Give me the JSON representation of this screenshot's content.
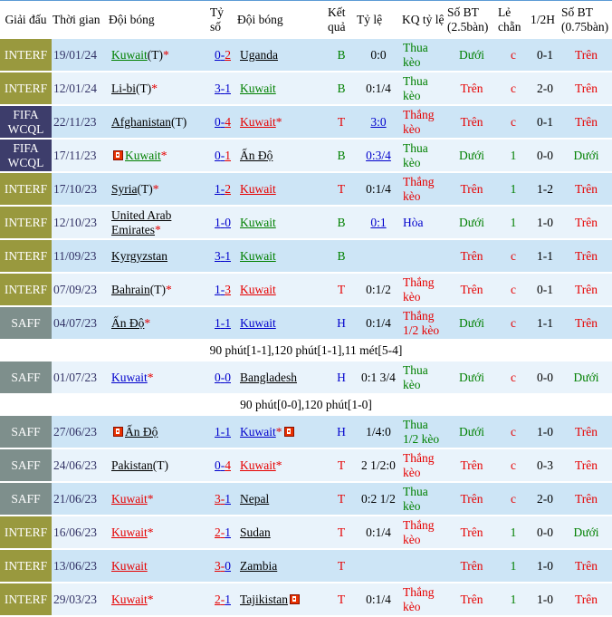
{
  "palette": {
    "green": "#008000",
    "red": "#e60000",
    "blue": "#0000cc",
    "black": "#000000",
    "date": "#333366",
    "badge_interf": "#99993e",
    "badge_fifawcql": "#3d3d6b",
    "badge_saff": "#7e8f8c",
    "row_dark": "#cde5f6",
    "row_light": "#e9f3fb"
  },
  "header": {
    "columns": [
      "Giải đấu",
      "Thời gian",
      "Đội bóng",
      "Tỷ số",
      "Đội bóng",
      "Kết quả",
      "Tỷ lệ",
      "KQ tỷ lệ",
      "Số BT (2.5bàn)",
      "Lẻ chẵn",
      "1/2H",
      "Số BT (0.75bàn)"
    ]
  },
  "rows": [
    {
      "type": "match",
      "tournament": "INTERF",
      "badge": "badge_interf",
      "date": "19/01/24",
      "home": {
        "name": "Kuwait",
        "suffix": "(T)",
        "star": true,
        "rc_before": false,
        "rc_after": false,
        "color": "green"
      },
      "score": {
        "left": "0",
        "right": "2",
        "left_color": "blue",
        "right_color": "red"
      },
      "away": {
        "name": "Uganda",
        "suffix": "",
        "star": false,
        "rc_before": false,
        "rc_after": false,
        "color": "black"
      },
      "result": {
        "text": "B",
        "color": "green"
      },
      "ratio": {
        "text": "0:0",
        "link": false
      },
      "kq": {
        "text": "Thua kèo",
        "color": "green"
      },
      "bt25": {
        "text": "Dưới",
        "color": "green"
      },
      "oddeven": {
        "text": "c",
        "color": "red"
      },
      "h12": "0-1",
      "bt075": {
        "text": "Trên",
        "color": "red"
      }
    },
    {
      "type": "match",
      "tournament": "INTERF",
      "badge": "badge_interf",
      "date": "12/01/24",
      "home": {
        "name": "Li-bi",
        "suffix": "(T)",
        "star": true,
        "rc_before": false,
        "rc_after": false,
        "color": "black"
      },
      "score": {
        "left": "3",
        "right": "1",
        "left_color": "blue",
        "right_color": "blue"
      },
      "away": {
        "name": "Kuwait",
        "suffix": "",
        "star": false,
        "rc_before": false,
        "rc_after": false,
        "color": "green"
      },
      "result": {
        "text": "B",
        "color": "green"
      },
      "ratio": {
        "text": "0:1/4",
        "link": false
      },
      "kq": {
        "text": "Thua kèo",
        "color": "green"
      },
      "bt25": {
        "text": "Trên",
        "color": "red"
      },
      "oddeven": {
        "text": "c",
        "color": "red"
      },
      "h12": "2-0",
      "bt075": {
        "text": "Trên",
        "color": "red"
      }
    },
    {
      "type": "match",
      "tournament": "FIFA WCQL",
      "badge": "badge_fifawcql",
      "date": "22/11/23",
      "home": {
        "name": "Afghanistan",
        "suffix": "(T)",
        "star": false,
        "rc_before": false,
        "rc_after": false,
        "color": "black"
      },
      "score": {
        "left": "0",
        "right": "4",
        "left_color": "blue",
        "right_color": "red"
      },
      "away": {
        "name": "Kuwait",
        "suffix": "",
        "star": true,
        "rc_before": false,
        "rc_after": false,
        "color": "red"
      },
      "result": {
        "text": "T",
        "color": "red"
      },
      "ratio": {
        "text": "3:0",
        "link": true
      },
      "kq": {
        "text": "Thắng kèo",
        "color": "red"
      },
      "bt25": {
        "text": "Trên",
        "color": "red"
      },
      "oddeven": {
        "text": "c",
        "color": "red"
      },
      "h12": "0-1",
      "bt075": {
        "text": "Trên",
        "color": "red"
      }
    },
    {
      "type": "match",
      "tournament": "FIFA WCQL",
      "badge": "badge_fifawcql",
      "date": "17/11/23",
      "home": {
        "name": "Kuwait",
        "suffix": "",
        "star": true,
        "rc_before": true,
        "rc_after": false,
        "color": "green"
      },
      "score": {
        "left": "0",
        "right": "1",
        "left_color": "blue",
        "right_color": "red"
      },
      "away": {
        "name": "Ấn Độ",
        "suffix": "",
        "star": false,
        "rc_before": false,
        "rc_after": false,
        "color": "black"
      },
      "result": {
        "text": "B",
        "color": "green"
      },
      "ratio": {
        "text": "0:3/4",
        "link": true
      },
      "kq": {
        "text": "Thua kèo",
        "color": "green"
      },
      "bt25": {
        "text": "Dưới",
        "color": "green"
      },
      "oddeven": {
        "text": "1",
        "color": "green"
      },
      "h12": "0-0",
      "bt075": {
        "text": "Dưới",
        "color": "green"
      }
    },
    {
      "type": "match",
      "tournament": "INTERF",
      "badge": "badge_interf",
      "date": "17/10/23",
      "home": {
        "name": "Syria",
        "suffix": "(T)",
        "star": true,
        "rc_before": false,
        "rc_after": false,
        "color": "black"
      },
      "score": {
        "left": "1",
        "right": "2",
        "left_color": "blue",
        "right_color": "red"
      },
      "away": {
        "name": "Kuwait",
        "suffix": "",
        "star": false,
        "rc_before": false,
        "rc_after": false,
        "color": "red"
      },
      "result": {
        "text": "T",
        "color": "red"
      },
      "ratio": {
        "text": "0:1/4",
        "link": false
      },
      "kq": {
        "text": "Thắng kèo",
        "color": "red"
      },
      "bt25": {
        "text": "Trên",
        "color": "red"
      },
      "oddeven": {
        "text": "1",
        "color": "green"
      },
      "h12": "1-2",
      "bt075": {
        "text": "Trên",
        "color": "red"
      }
    },
    {
      "type": "match",
      "tournament": "INTERF",
      "badge": "badge_interf",
      "date": "12/10/23",
      "home": {
        "name": "United Arab Emirates",
        "suffix": "",
        "star": true,
        "rc_before": false,
        "rc_after": false,
        "color": "black"
      },
      "score": {
        "left": "1",
        "right": "0",
        "left_color": "blue",
        "right_color": "blue"
      },
      "away": {
        "name": "Kuwait",
        "suffix": "",
        "star": false,
        "rc_before": false,
        "rc_after": false,
        "color": "green"
      },
      "result": {
        "text": "B",
        "color": "green"
      },
      "ratio": {
        "text": "0:1",
        "link": true
      },
      "kq": {
        "text": "Hòa",
        "color": "blue"
      },
      "bt25": {
        "text": "Dưới",
        "color": "green"
      },
      "oddeven": {
        "text": "1",
        "color": "green"
      },
      "h12": "1-0",
      "bt075": {
        "text": "Trên",
        "color": "red"
      }
    },
    {
      "type": "match",
      "tournament": "INTERF",
      "badge": "badge_interf",
      "date": "11/09/23",
      "home": {
        "name": "Kyrgyzstan",
        "suffix": "",
        "star": false,
        "rc_before": false,
        "rc_after": false,
        "color": "black"
      },
      "score": {
        "left": "3",
        "right": "1",
        "left_color": "blue",
        "right_color": "blue"
      },
      "away": {
        "name": "Kuwait",
        "suffix": "",
        "star": false,
        "rc_before": false,
        "rc_after": false,
        "color": "green"
      },
      "result": {
        "text": "B",
        "color": "green"
      },
      "ratio": {
        "text": "",
        "link": false
      },
      "kq": {
        "text": "",
        "color": "black"
      },
      "bt25": {
        "text": "Trên",
        "color": "red"
      },
      "oddeven": {
        "text": "c",
        "color": "red"
      },
      "h12": "1-1",
      "bt075": {
        "text": "Trên",
        "color": "red"
      }
    },
    {
      "type": "match",
      "tournament": "INTERF",
      "badge": "badge_interf",
      "date": "07/09/23",
      "home": {
        "name": "Bahrain",
        "suffix": "(T)",
        "star": true,
        "rc_before": false,
        "rc_after": false,
        "color": "black"
      },
      "score": {
        "left": "1",
        "right": "3",
        "left_color": "blue",
        "right_color": "red"
      },
      "away": {
        "name": "Kuwait",
        "suffix": "",
        "star": false,
        "rc_before": false,
        "rc_after": false,
        "color": "red"
      },
      "result": {
        "text": "T",
        "color": "red"
      },
      "ratio": {
        "text": "0:1/2",
        "link": false
      },
      "kq": {
        "text": "Thắng kèo",
        "color": "red"
      },
      "bt25": {
        "text": "Trên",
        "color": "red"
      },
      "oddeven": {
        "text": "c",
        "color": "red"
      },
      "h12": "0-1",
      "bt075": {
        "text": "Trên",
        "color": "red"
      }
    },
    {
      "type": "match",
      "tournament": "SAFF",
      "badge": "badge_saff",
      "date": "04/07/23",
      "home": {
        "name": "Ấn Độ",
        "suffix": "",
        "star": true,
        "rc_before": false,
        "rc_after": false,
        "color": "black"
      },
      "score": {
        "left": "1",
        "right": "1",
        "left_color": "blue",
        "right_color": "blue"
      },
      "away": {
        "name": "Kuwait",
        "suffix": "",
        "star": false,
        "rc_before": false,
        "rc_after": false,
        "color": "blue"
      },
      "result": {
        "text": "H",
        "color": "blue"
      },
      "ratio": {
        "text": "0:1/4",
        "link": false
      },
      "kq": {
        "text": "Thắng 1/2 kèo",
        "color": "red"
      },
      "bt25": {
        "text": "Dưới",
        "color": "green"
      },
      "oddeven": {
        "text": "c",
        "color": "red"
      },
      "h12": "1-1",
      "bt075": {
        "text": "Trên",
        "color": "red"
      }
    },
    {
      "type": "note",
      "text": "90 phút[1-1],120 phút[1-1],11 mét[5-4]"
    },
    {
      "type": "match",
      "tournament": "SAFF",
      "badge": "badge_saff",
      "date": "01/07/23",
      "home": {
        "name": "Kuwait",
        "suffix": "",
        "star": true,
        "rc_before": false,
        "rc_after": false,
        "color": "blue"
      },
      "score": {
        "left": "0",
        "right": "0",
        "left_color": "blue",
        "right_color": "blue"
      },
      "away": {
        "name": "Bangladesh",
        "suffix": "",
        "star": false,
        "rc_before": false,
        "rc_after": false,
        "color": "black"
      },
      "result": {
        "text": "H",
        "color": "blue"
      },
      "ratio": {
        "text": "0:1 3/4",
        "link": false
      },
      "kq": {
        "text": "Thua kèo",
        "color": "green"
      },
      "bt25": {
        "text": "Dưới",
        "color": "green"
      },
      "oddeven": {
        "text": "c",
        "color": "red"
      },
      "h12": "0-0",
      "bt075": {
        "text": "Dưới",
        "color": "green"
      }
    },
    {
      "type": "note",
      "text": "90 phút[0-0],120 phút[1-0]"
    },
    {
      "type": "match",
      "tournament": "SAFF",
      "badge": "badge_saff",
      "date": "27/06/23",
      "home": {
        "name": "Ấn Độ",
        "suffix": "",
        "star": false,
        "rc_before": true,
        "rc_after": false,
        "color": "black"
      },
      "score": {
        "left": "1",
        "right": "1",
        "left_color": "blue",
        "right_color": "blue"
      },
      "away": {
        "name": "Kuwait",
        "suffix": "",
        "star": true,
        "rc_before": false,
        "rc_after": true,
        "color": "blue"
      },
      "result": {
        "text": "H",
        "color": "blue"
      },
      "ratio": {
        "text": "1/4:0",
        "link": false
      },
      "kq": {
        "text": "Thua 1/2 kèo",
        "color": "green"
      },
      "bt25": {
        "text": "Dưới",
        "color": "green"
      },
      "oddeven": {
        "text": "c",
        "color": "red"
      },
      "h12": "1-0",
      "bt075": {
        "text": "Trên",
        "color": "red"
      }
    },
    {
      "type": "match",
      "tournament": "SAFF",
      "badge": "badge_saff",
      "date": "24/06/23",
      "home": {
        "name": "Pakistan",
        "suffix": "(T)",
        "star": false,
        "rc_before": false,
        "rc_after": false,
        "color": "black"
      },
      "score": {
        "left": "0",
        "right": "4",
        "left_color": "blue",
        "right_color": "red"
      },
      "away": {
        "name": "Kuwait",
        "suffix": "",
        "star": true,
        "rc_before": false,
        "rc_after": false,
        "color": "red"
      },
      "result": {
        "text": "T",
        "color": "red"
      },
      "ratio": {
        "text": "2 1/2:0",
        "link": false
      },
      "kq": {
        "text": "Thắng kèo",
        "color": "red"
      },
      "bt25": {
        "text": "Trên",
        "color": "red"
      },
      "oddeven": {
        "text": "c",
        "color": "red"
      },
      "h12": "0-3",
      "bt075": {
        "text": "Trên",
        "color": "red"
      }
    },
    {
      "type": "match",
      "tournament": "SAFF",
      "badge": "badge_saff",
      "date": "21/06/23",
      "home": {
        "name": "Kuwait",
        "suffix": "",
        "star": true,
        "rc_before": false,
        "rc_after": false,
        "color": "red"
      },
      "score": {
        "left": "3",
        "right": "1",
        "left_color": "red",
        "right_color": "blue"
      },
      "away": {
        "name": "Nepal",
        "suffix": "",
        "star": false,
        "rc_before": false,
        "rc_after": false,
        "color": "black"
      },
      "result": {
        "text": "T",
        "color": "red"
      },
      "ratio": {
        "text": "0:2 1/2",
        "link": false
      },
      "kq": {
        "text": "Thua kèo",
        "color": "green"
      },
      "bt25": {
        "text": "Trên",
        "color": "red"
      },
      "oddeven": {
        "text": "c",
        "color": "red"
      },
      "h12": "2-0",
      "bt075": {
        "text": "Trên",
        "color": "red"
      }
    },
    {
      "type": "match",
      "tournament": "INTERF",
      "badge": "badge_interf",
      "date": "16/06/23",
      "home": {
        "name": "Kuwait",
        "suffix": "",
        "star": true,
        "rc_before": false,
        "rc_after": false,
        "color": "red"
      },
      "score": {
        "left": "2",
        "right": "1",
        "left_color": "red",
        "right_color": "blue"
      },
      "away": {
        "name": "Sudan",
        "suffix": "",
        "star": false,
        "rc_before": false,
        "rc_after": false,
        "color": "black"
      },
      "result": {
        "text": "T",
        "color": "red"
      },
      "ratio": {
        "text": "0:1/4",
        "link": false
      },
      "kq": {
        "text": "Thắng kèo",
        "color": "red"
      },
      "bt25": {
        "text": "Trên",
        "color": "red"
      },
      "oddeven": {
        "text": "1",
        "color": "green"
      },
      "h12": "0-0",
      "bt075": {
        "text": "Dưới",
        "color": "green"
      }
    },
    {
      "type": "match",
      "tournament": "INTERF",
      "badge": "badge_interf",
      "date": "13/06/23",
      "home": {
        "name": "Kuwait",
        "suffix": "",
        "star": false,
        "rc_before": false,
        "rc_after": false,
        "color": "red"
      },
      "score": {
        "left": "3",
        "right": "0",
        "left_color": "red",
        "right_color": "blue"
      },
      "away": {
        "name": "Zambia",
        "suffix": "",
        "star": false,
        "rc_before": false,
        "rc_after": false,
        "color": "black"
      },
      "result": {
        "text": "T",
        "color": "red"
      },
      "ratio": {
        "text": "",
        "link": false
      },
      "kq": {
        "text": "",
        "color": "black"
      },
      "bt25": {
        "text": "Trên",
        "color": "red"
      },
      "oddeven": {
        "text": "1",
        "color": "green"
      },
      "h12": "1-0",
      "bt075": {
        "text": "Trên",
        "color": "red"
      }
    },
    {
      "type": "match",
      "tournament": "INTERF",
      "badge": "badge_interf",
      "date": "29/03/23",
      "home": {
        "name": "Kuwait",
        "suffix": "",
        "star": true,
        "rc_before": false,
        "rc_after": false,
        "color": "red"
      },
      "score": {
        "left": "2",
        "right": "1",
        "left_color": "red",
        "right_color": "blue"
      },
      "away": {
        "name": "Tajikistan",
        "suffix": "",
        "star": false,
        "rc_before": false,
        "rc_after": true,
        "color": "black"
      },
      "result": {
        "text": "T",
        "color": "red"
      },
      "ratio": {
        "text": "0:1/4",
        "link": false
      },
      "kq": {
        "text": "Thắng kèo",
        "color": "red"
      },
      "bt25": {
        "text": "Trên",
        "color": "red"
      },
      "oddeven": {
        "text": "1",
        "color": "green"
      },
      "h12": "1-0",
      "bt075": {
        "text": "Trên",
        "color": "red"
      }
    }
  ]
}
